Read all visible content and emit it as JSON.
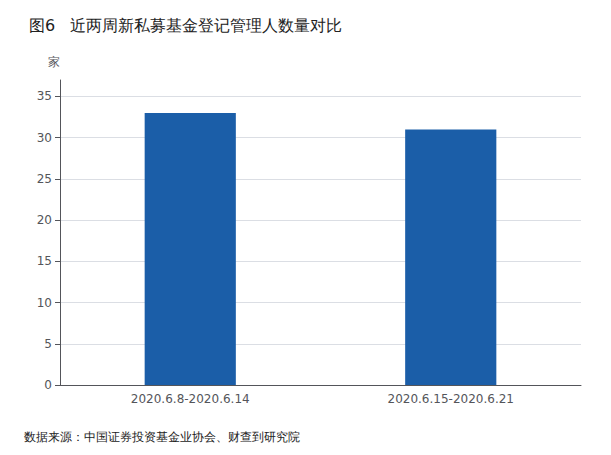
{
  "chart_data": {
    "type": "bar",
    "title": "图6   近两周新私募基金登记管理人数量对比",
    "ylabel": "家",
    "categories": [
      "2020.6.8-2020.6.14",
      "2020.6.15-2020.6.21"
    ],
    "values": [
      33,
      31
    ],
    "color": "#1B5EA8",
    "ylim": [
      0,
      37
    ],
    "yticks": [
      0,
      5,
      10,
      15,
      20,
      25,
      30,
      35
    ],
    "grid": true,
    "annotations": [
      "数据来源：中国证券投资基金业协会、财查到研究院"
    ]
  }
}
